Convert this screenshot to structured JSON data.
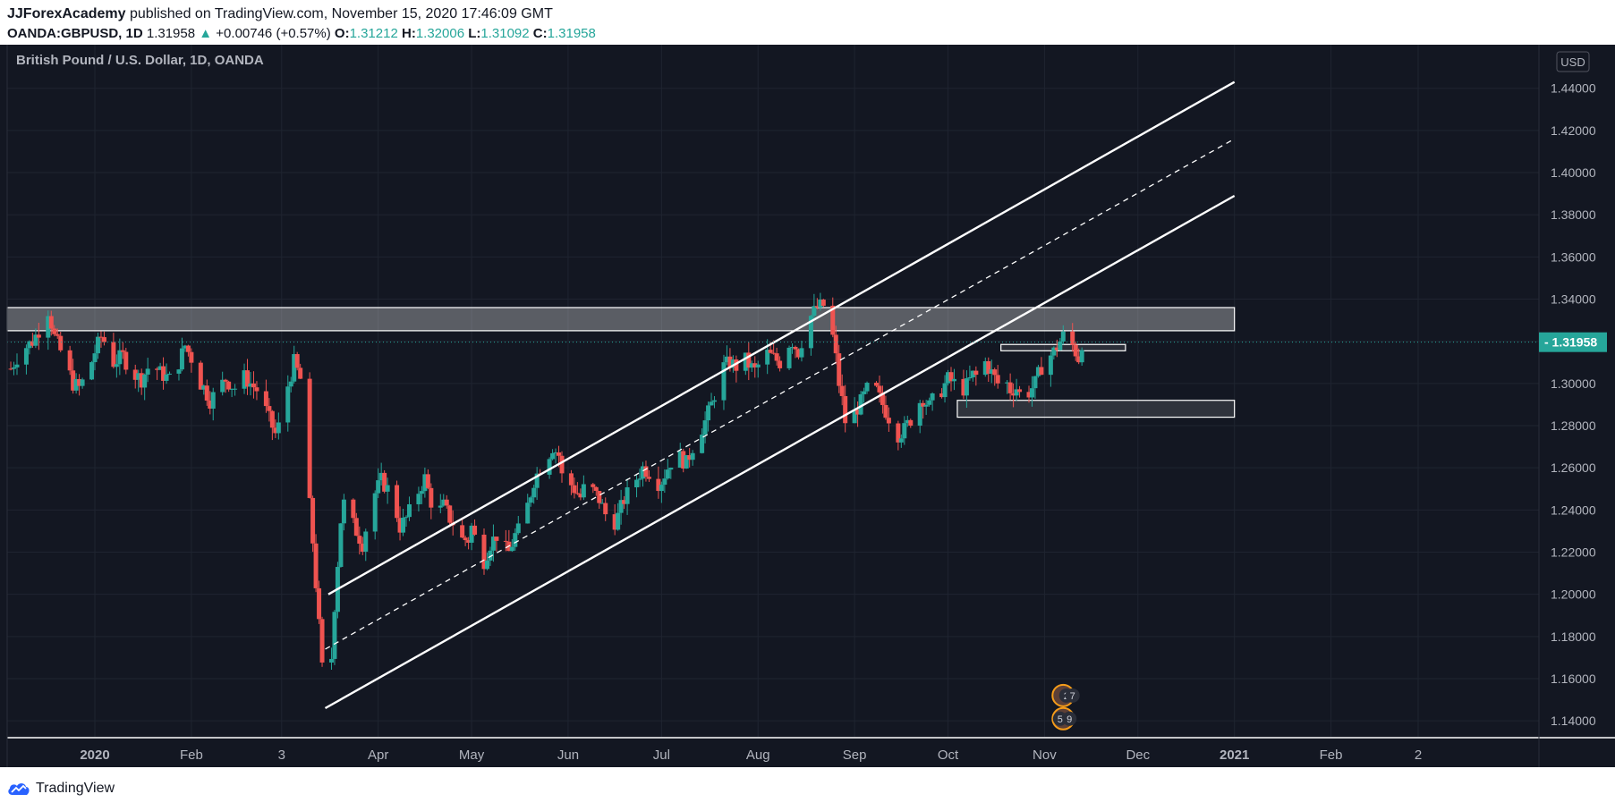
{
  "header": {
    "author": "JJForexAcademy",
    "published_text": "published on TradingView.com, November 15, 2020 17:46:09 GMT",
    "symbol": "OANDA:GBPUSD, 1D",
    "last": "1.31958",
    "change_arrow": "▲",
    "change": "+0.00746 (+0.57%)",
    "o_label": "O:",
    "o_value": "1.31212",
    "h_label": "H:",
    "h_value": "1.32006",
    "l_label": "L:",
    "l_value": "1.31092",
    "c_label": "C:",
    "c_value": "1.31958"
  },
  "footer": {
    "brand": "TradingView"
  },
  "chart_data": {
    "type": "candlestick",
    "title": "British Pound / U.S. Dollar, 1D, OANDA",
    "currency_label": "USD",
    "current_price": 1.31958,
    "current_price_label": "1.31958",
    "ylim": [
      1.132,
      1.45
    ],
    "y_ticks": [
      1.14,
      1.16,
      1.18,
      1.2,
      1.22,
      1.24,
      1.26,
      1.28,
      1.3,
      1.32,
      1.34,
      1.36,
      1.38,
      1.4,
      1.42,
      1.44
    ],
    "y_tick_labels": [
      "1.14000",
      "1.16000",
      "1.18000",
      "1.20000",
      "1.22000",
      "1.24000",
      "1.26000",
      "1.28000",
      "1.30000",
      "1.32000",
      "1.34000",
      "1.36000",
      "1.38000",
      "1.40000",
      "1.42000",
      "1.44000"
    ],
    "x_range_days": [
      -39,
      455
    ],
    "x_ticks": [
      {
        "label": "2020",
        "day": 0,
        "bold": true
      },
      {
        "label": "Feb",
        "day": 31,
        "bold": false
      },
      {
        "label": "3",
        "day": 60,
        "bold": false
      },
      {
        "label": "Apr",
        "day": 91,
        "bold": false
      },
      {
        "label": "May",
        "day": 121,
        "bold": false
      },
      {
        "label": "Jun",
        "day": 152,
        "bold": false
      },
      {
        "label": "Jul",
        "day": 182,
        "bold": false
      },
      {
        "label": "Aug",
        "day": 213,
        "bold": false
      },
      {
        "label": "Sep",
        "day": 244,
        "bold": false
      },
      {
        "label": "Oct",
        "day": 274,
        "bold": false
      },
      {
        "label": "Nov",
        "day": 305,
        "bold": false
      },
      {
        "label": "Dec",
        "day": 335,
        "bold": false
      },
      {
        "label": "2021",
        "day": 366,
        "bold": true
      },
      {
        "label": "Feb",
        "day": 397,
        "bold": false
      },
      {
        "label": "2",
        "day": 425,
        "bold": false
      }
    ],
    "price_path": [
      [
        -27,
        1.307
      ],
      [
        -24,
        1.315
      ],
      [
        -20,
        1.32
      ],
      [
        -17,
        1.328
      ],
      [
        -16,
        1.342
      ],
      [
        -15,
        1.335
      ],
      [
        -13,
        1.322
      ],
      [
        -10,
        1.312
      ],
      [
        -7,
        1.3
      ],
      [
        -5,
        1.298
      ],
      [
        -2,
        1.306
      ],
      [
        0,
        1.315
      ],
      [
        2,
        1.322
      ],
      [
        4,
        1.318
      ],
      [
        6,
        1.31
      ],
      [
        9,
        1.313
      ],
      [
        12,
        1.305
      ],
      [
        15,
        1.302
      ],
      [
        18,
        1.31
      ],
      [
        21,
        1.305
      ],
      [
        24,
        1.302
      ],
      [
        27,
        1.31
      ],
      [
        29,
        1.318
      ],
      [
        31,
        1.312
      ],
      [
        33,
        1.302
      ],
      [
        35,
        1.298
      ],
      [
        37,
        1.292
      ],
      [
        40,
        1.298
      ],
      [
        42,
        1.302
      ],
      [
        44,
        1.299
      ],
      [
        46,
        1.297
      ],
      [
        48,
        1.303
      ],
      [
        50,
        1.3
      ],
      [
        52,
        1.297
      ],
      [
        54,
        1.291
      ],
      [
        56,
        1.283
      ],
      [
        58,
        1.276
      ],
      [
        60,
        1.283
      ],
      [
        62,
        1.299
      ],
      [
        64,
        1.31
      ],
      [
        66,
        1.302
      ],
      [
        67,
        1.282
      ],
      [
        68,
        1.262
      ],
      [
        69,
        1.242
      ],
      [
        70,
        1.225
      ],
      [
        71,
        1.205
      ],
      [
        72,
        1.185
      ],
      [
        73,
        1.165
      ],
      [
        74,
        1.15
      ],
      [
        75,
        1.16
      ],
      [
        76,
        1.17
      ],
      [
        77,
        1.195
      ],
      [
        78,
        1.215
      ],
      [
        79,
        1.235
      ],
      [
        80,
        1.243
      ],
      [
        82,
        1.236
      ],
      [
        84,
        1.23
      ],
      [
        86,
        1.224
      ],
      [
        88,
        1.238
      ],
      [
        90,
        1.248
      ],
      [
        92,
        1.254
      ],
      [
        94,
        1.25
      ],
      [
        96,
        1.244
      ],
      [
        98,
        1.232
      ],
      [
        100,
        1.236
      ],
      [
        102,
        1.242
      ],
      [
        104,
        1.249
      ],
      [
        106,
        1.255
      ],
      [
        108,
        1.244
      ],
      [
        110,
        1.238
      ],
      [
        112,
        1.242
      ],
      [
        114,
        1.236
      ],
      [
        116,
        1.232
      ],
      [
        118,
        1.226
      ],
      [
        120,
        1.226
      ],
      [
        121,
        1.232
      ],
      [
        123,
        1.222
      ],
      [
        125,
        1.216
      ],
      [
        127,
        1.224
      ],
      [
        129,
        1.228
      ],
      [
        131,
        1.222
      ],
      [
        133,
        1.22
      ],
      [
        135,
        1.228
      ],
      [
        137,
        1.232
      ],
      [
        139,
        1.242
      ],
      [
        141,
        1.254
      ],
      [
        143,
        1.26
      ],
      [
        145,
        1.264
      ],
      [
        147,
        1.27
      ],
      [
        149,
        1.266
      ],
      [
        150,
        1.256
      ],
      [
        152,
        1.254
      ],
      [
        154,
        1.25
      ],
      [
        156,
        1.246
      ],
      [
        158,
        1.254
      ],
      [
        160,
        1.249
      ],
      [
        162,
        1.245
      ],
      [
        164,
        1.238
      ],
      [
        166,
        1.232
      ],
      [
        168,
        1.237
      ],
      [
        170,
        1.245
      ],
      [
        172,
        1.25
      ],
      [
        174,
        1.255
      ],
      [
        176,
        1.26
      ],
      [
        178,
        1.258
      ],
      [
        180,
        1.252
      ],
      [
        182,
        1.254
      ],
      [
        184,
        1.26
      ],
      [
        186,
        1.266
      ],
      [
        188,
        1.265
      ],
      [
        190,
        1.262
      ],
      [
        192,
        1.27
      ],
      [
        194,
        1.276
      ],
      [
        196,
        1.282
      ],
      [
        198,
        1.29
      ],
      [
        200,
        1.3
      ],
      [
        202,
        1.308
      ],
      [
        204,
        1.31
      ],
      [
        206,
        1.308
      ],
      [
        208,
        1.313
      ],
      [
        210,
        1.309
      ],
      [
        212,
        1.306
      ],
      [
        214,
        1.311
      ],
      [
        216,
        1.314
      ],
      [
        218,
        1.312
      ],
      [
        220,
        1.31
      ],
      [
        222,
        1.318
      ],
      [
        224,
        1.32
      ],
      [
        226,
        1.315
      ],
      [
        228,
        1.325
      ],
      [
        230,
        1.332
      ],
      [
        232,
        1.336
      ],
      [
        234,
        1.337
      ],
      [
        235,
        1.333
      ],
      [
        236,
        1.328
      ],
      [
        237,
        1.322
      ],
      [
        238,
        1.312
      ],
      [
        239,
        1.3
      ],
      [
        240,
        1.292
      ],
      [
        241,
        1.282
      ],
      [
        242,
        1.281
      ],
      [
        244,
        1.286
      ],
      [
        246,
        1.291
      ],
      [
        248,
        1.297
      ],
      [
        250,
        1.3
      ],
      [
        252,
        1.293
      ],
      [
        254,
        1.287
      ],
      [
        256,
        1.281
      ],
      [
        258,
        1.276
      ],
      [
        260,
        1.278
      ],
      [
        262,
        1.283
      ],
      [
        264,
        1.29
      ],
      [
        266,
        1.293
      ],
      [
        268,
        1.289
      ],
      [
        270,
        1.294
      ],
      [
        272,
        1.297
      ],
      [
        274,
        1.302
      ],
      [
        276,
        1.3
      ],
      [
        278,
        1.296
      ],
      [
        280,
        1.299
      ],
      [
        282,
        1.304
      ],
      [
        284,
        1.303
      ],
      [
        286,
        1.31
      ],
      [
        288,
        1.305
      ],
      [
        290,
        1.3
      ],
      [
        292,
        1.303
      ],
      [
        294,
        1.297
      ],
      [
        296,
        1.298
      ],
      [
        298,
        1.292
      ],
      [
        300,
        1.296
      ],
      [
        302,
        1.3
      ],
      [
        304,
        1.308
      ],
      [
        306,
        1.312
      ],
      [
        308,
        1.315
      ],
      [
        310,
        1.32
      ],
      [
        312,
        1.325
      ],
      [
        314,
        1.318
      ],
      [
        316,
        1.312
      ],
      [
        317,
        1.3196
      ]
    ],
    "annotations": {
      "channel_upper": {
        "from": [
          75,
          1.2
        ],
        "to": [
          366,
          1.443
        ]
      },
      "channel_mid": {
        "from": [
          74,
          1.174
        ],
        "to": [
          366,
          1.416
        ],
        "dashed": true
      },
      "channel_lower": {
        "from": [
          74,
          1.146
        ],
        "to": [
          366,
          1.389
        ]
      },
      "resistance_zone": {
        "x_from": -39,
        "x_to": 366,
        "y_low": 1.325,
        "y_high": 1.336
      },
      "small_zone": {
        "x_from": 291,
        "x_to": 331,
        "y_low": 1.3155,
        "y_high": 1.3185
      },
      "support_zone": {
        "x_from": 277,
        "x_to": 366,
        "y_low": 1.284,
        "y_high": 1.292
      }
    },
    "events": [
      {
        "label": "2",
        "day": 312,
        "price_level": 1.152
      },
      {
        "label": "7",
        "day": 314,
        "price_level": 1.152
      },
      {
        "label": "5",
        "day": 310,
        "price_level": 1.141
      },
      {
        "label": "9",
        "day": 313,
        "price_level": 1.141
      }
    ],
    "colors": {
      "up": "#26a69a",
      "down": "#ef5350",
      "bg": "#131722",
      "grid": "#1f2430",
      "text": "#b2b5be",
      "line": "#ffffff",
      "price_tag": "#26a69a"
    }
  }
}
